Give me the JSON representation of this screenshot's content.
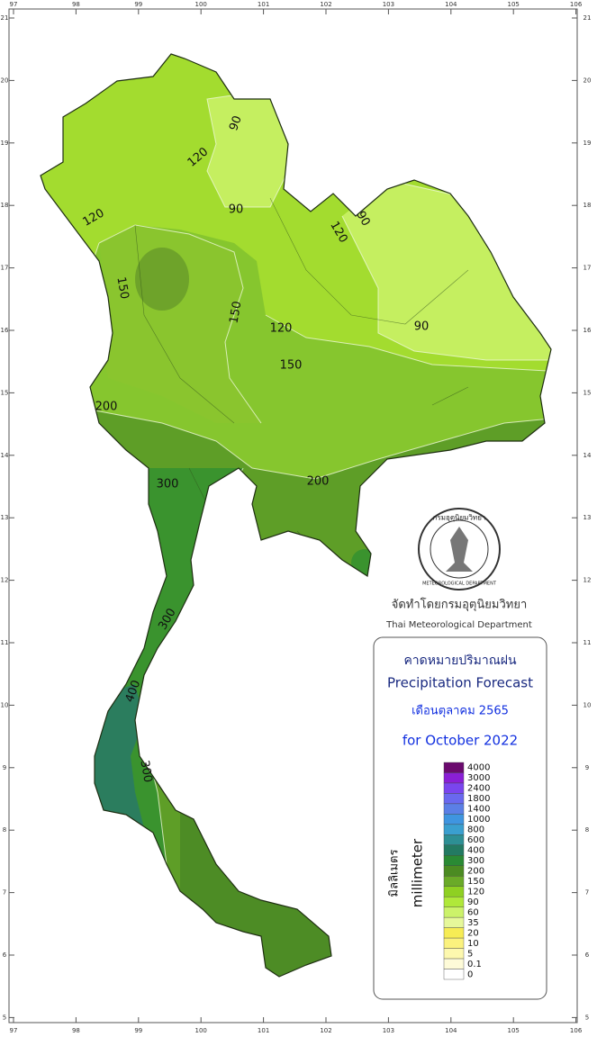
{
  "frame": {
    "longitudes": [
      97,
      98,
      99,
      100,
      101,
      102,
      103,
      104,
      105,
      106
    ],
    "latitudes": [
      5,
      6,
      7,
      8,
      9,
      10,
      11,
      12,
      13,
      14,
      15,
      16,
      17,
      18,
      19,
      20,
      21
    ]
  },
  "contour_labels": [
    90,
    120,
    90,
    120,
    150,
    150,
    120,
    150,
    90,
    120,
    90,
    200,
    200,
    300,
    300,
    400,
    300
  ],
  "seal": {
    "text_thai": "กรมอุตุนิยมวิทยา",
    "text_english": "METEOROLOGICAL DEPARTMENT"
  },
  "agency": {
    "thai": "จัดทำโดยกรมอุตุนิยมวิทยา",
    "english": "Thai Meteorological Department"
  },
  "legend": {
    "title_thai": "คาดหมายปริมาณฝน",
    "title_english": "Precipitation Forecast",
    "period_thai": "เดือนตุลาคม 2565",
    "period_english": "for October 2022",
    "unit_thai": "มิลลิเมตร",
    "unit_english": "millimeter",
    "classes": [
      {
        "value": 4000,
        "color": "#6b0a6e"
      },
      {
        "value": 3000,
        "color": "#8a1fd6"
      },
      {
        "value": 2400,
        "color": "#7a45ee"
      },
      {
        "value": 1800,
        "color": "#6a68ef"
      },
      {
        "value": 1400,
        "color": "#5b7fe6"
      },
      {
        "value": 1000,
        "color": "#3f95e0"
      },
      {
        "value": 800,
        "color": "#3a9fcf"
      },
      {
        "value": 600,
        "color": "#2d8f94"
      },
      {
        "value": 400,
        "color": "#237a62"
      },
      {
        "value": 300,
        "color": "#2a8a34"
      },
      {
        "value": 200,
        "color": "#4b8b22"
      },
      {
        "value": 150,
        "color": "#6aaa28"
      },
      {
        "value": 120,
        "color": "#8fd022"
      },
      {
        "value": 90,
        "color": "#b0e83a"
      },
      {
        "value": 60,
        "color": "#ccf26a"
      },
      {
        "value": 35,
        "color": "#e6f89a"
      },
      {
        "value": 20,
        "color": "#f6ec55"
      },
      {
        "value": 10,
        "color": "#fbf27e"
      },
      {
        "value": 5,
        "color": "#fdf8ae"
      },
      {
        "value": 0.1,
        "color": "#fefbd8"
      },
      {
        "value": 0,
        "color": "#ffffff"
      }
    ]
  }
}
